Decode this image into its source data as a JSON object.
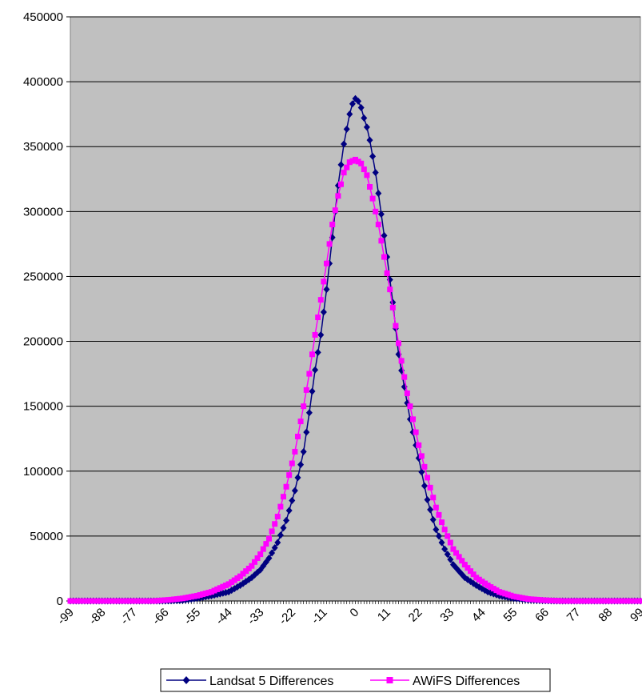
{
  "chart_data": {
    "type": "line",
    "title": "",
    "xlabel": "",
    "ylabel": "",
    "xlim": [
      -99,
      99
    ],
    "ylim": [
      0,
      450000
    ],
    "grid": true,
    "legend_position": "bottom",
    "plot_background": "#C0C0C0",
    "x_tick_labels": [
      "-99",
      "-88",
      "-77",
      "-66",
      "-55",
      "-44",
      "-33",
      "-22",
      "-11",
      "0",
      "11",
      "22",
      "33",
      "44",
      "55",
      "66",
      "77",
      "88",
      "99"
    ],
    "y_tick_labels": [
      "0",
      "50000",
      "100000",
      "150000",
      "200000",
      "250000",
      "300000",
      "350000",
      "400000",
      "450000"
    ],
    "series": [
      {
        "name": "Landsat 5 Differences",
        "color": "#000080",
        "marker": "diamond",
        "points": [
          [
            -99,
            0
          ],
          [
            -66,
            0
          ],
          [
            -60,
            500
          ],
          [
            -55,
            2000
          ],
          [
            -50,
            4000
          ],
          [
            -46,
            6000
          ],
          [
            -44,
            7000
          ],
          [
            -40,
            12000
          ],
          [
            -36,
            18000
          ],
          [
            -33,
            24000
          ],
          [
            -30,
            33000
          ],
          [
            -27,
            45000
          ],
          [
            -24,
            62000
          ],
          [
            -21,
            85000
          ],
          [
            -18,
            115000
          ],
          [
            -16,
            145000
          ],
          [
            -14,
            178000
          ],
          [
            -12,
            205000
          ],
          [
            -10,
            240000
          ],
          [
            -8,
            280000
          ],
          [
            -6,
            320000
          ],
          [
            -4,
            352000
          ],
          [
            -2,
            375000
          ],
          [
            -1,
            383000
          ],
          [
            0,
            387000
          ],
          [
            1,
            385000
          ],
          [
            2,
            380000
          ],
          [
            3,
            372000
          ],
          [
            4,
            365000
          ],
          [
            5,
            355000
          ],
          [
            7,
            330000
          ],
          [
            9,
            298000
          ],
          [
            11,
            265000
          ],
          [
            13,
            230000
          ],
          [
            15,
            190000
          ],
          [
            17,
            165000
          ],
          [
            19,
            140000
          ],
          [
            22,
            110000
          ],
          [
            25,
            78000
          ],
          [
            28,
            55000
          ],
          [
            31,
            40000
          ],
          [
            34,
            28000
          ],
          [
            38,
            18000
          ],
          [
            42,
            12000
          ],
          [
            46,
            7000
          ],
          [
            50,
            4000
          ],
          [
            55,
            2000
          ],
          [
            60,
            800
          ],
          [
            66,
            200
          ],
          [
            70,
            0
          ],
          [
            99,
            0
          ]
        ]
      },
      {
        "name": "AWiFS Differences",
        "color": "#FF00FF",
        "marker": "square",
        "points": [
          [
            -99,
            0
          ],
          [
            -70,
            0
          ],
          [
            -64,
            1000
          ],
          [
            -60,
            2000
          ],
          [
            -55,
            4000
          ],
          [
            -50,
            7000
          ],
          [
            -46,
            11000
          ],
          [
            -44,
            13000
          ],
          [
            -40,
            19000
          ],
          [
            -36,
            27000
          ],
          [
            -33,
            36000
          ],
          [
            -30,
            48000
          ],
          [
            -27,
            65000
          ],
          [
            -24,
            88000
          ],
          [
            -21,
            115000
          ],
          [
            -18,
            150000
          ],
          [
            -16,
            175000
          ],
          [
            -14,
            205000
          ],
          [
            -12,
            232000
          ],
          [
            -10,
            260000
          ],
          [
            -8,
            290000
          ],
          [
            -6,
            312000
          ],
          [
            -4,
            330000
          ],
          [
            -2,
            338000
          ],
          [
            0,
            340000
          ],
          [
            2,
            337000
          ],
          [
            4,
            328000
          ],
          [
            6,
            310000
          ],
          [
            8,
            290000
          ],
          [
            10,
            265000
          ],
          [
            12,
            240000
          ],
          [
            14,
            212000
          ],
          [
            16,
            185000
          ],
          [
            18,
            160000
          ],
          [
            20,
            140000
          ],
          [
            22,
            120000
          ],
          [
            25,
            95000
          ],
          [
            28,
            72000
          ],
          [
            31,
            55000
          ],
          [
            34,
            40000
          ],
          [
            38,
            28000
          ],
          [
            42,
            18000
          ],
          [
            46,
            12000
          ],
          [
            50,
            7000
          ],
          [
            55,
            3500
          ],
          [
            60,
            1500
          ],
          [
            66,
            500
          ],
          [
            72,
            0
          ],
          [
            99,
            0
          ]
        ]
      }
    ]
  }
}
